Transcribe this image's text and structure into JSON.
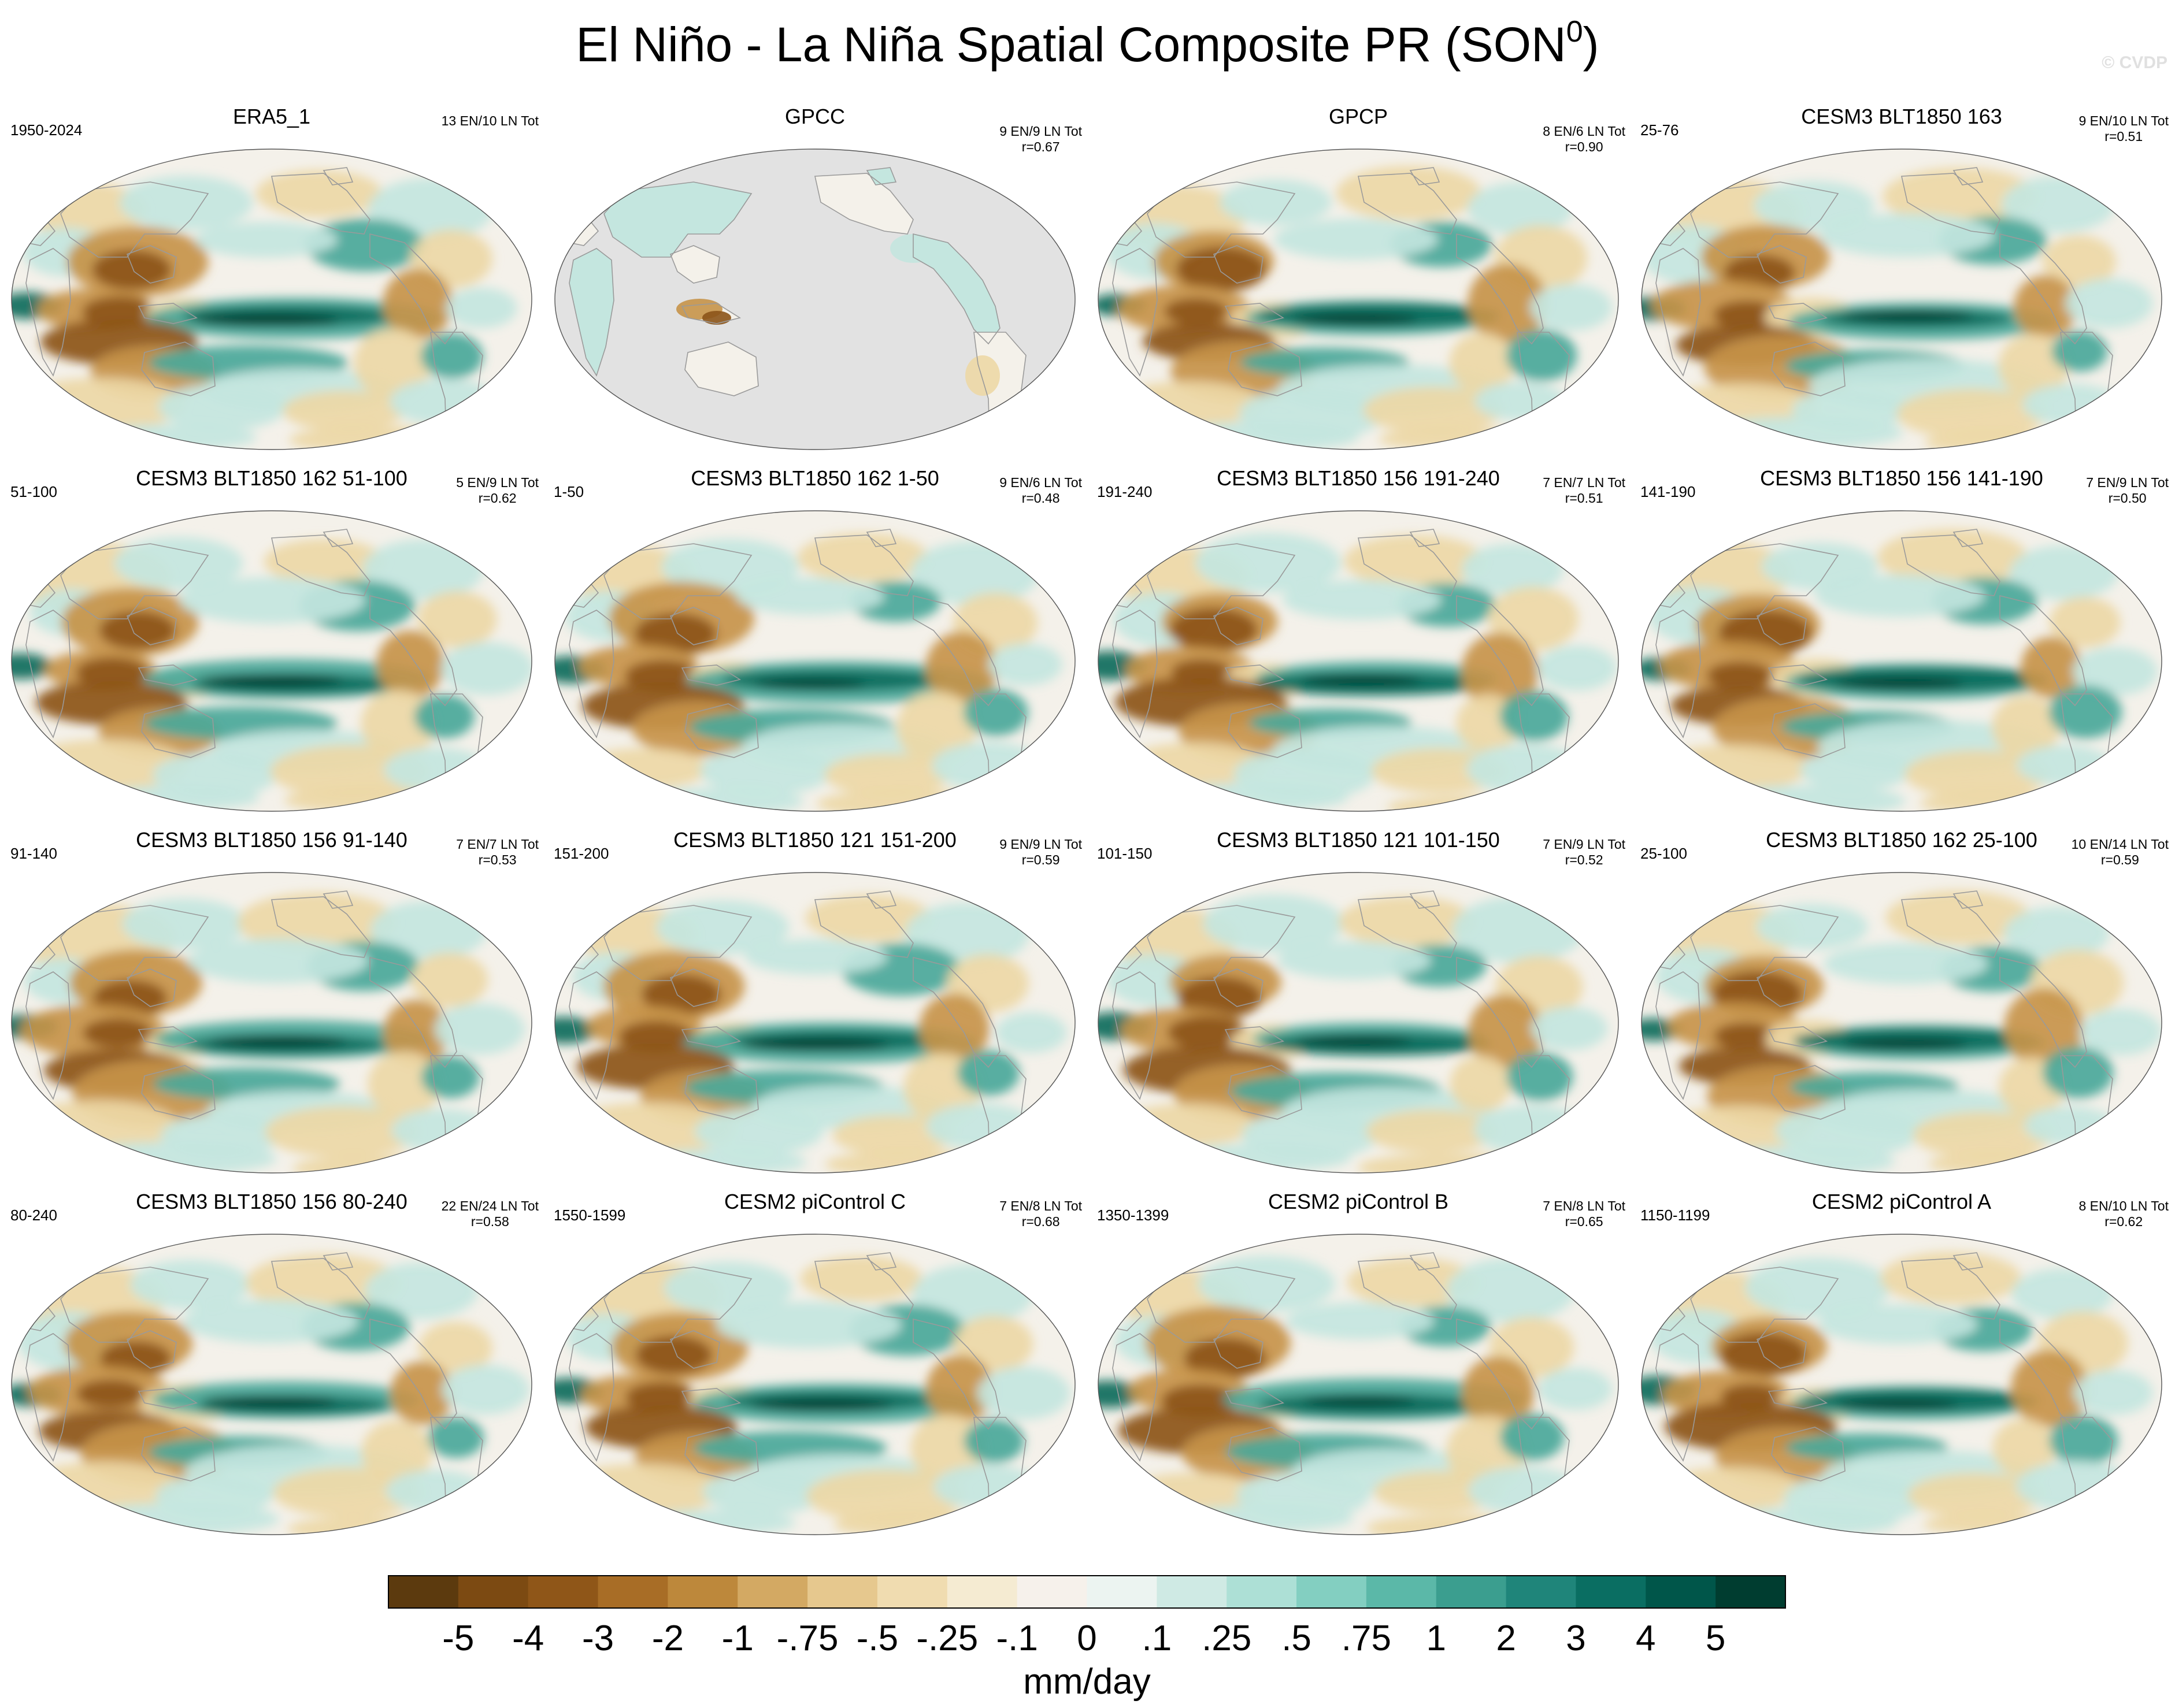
{
  "title_main": "El Niño - La Niña Spatial Composite PR (SON",
  "title_sup": "0",
  "title_close": ")",
  "copyright": "© CVDP",
  "colors": {
    "ocean_base": "#f4f1ea",
    "missing_gray": "#e2e2e2",
    "outline": "#9a9a9a",
    "dry_strong": "#8c5418",
    "dry_mid": "#c79449",
    "dry_light": "#edd8a6",
    "wet_light": "#c4e6df",
    "wet_mid": "#4aa89a",
    "wet_strong": "#0a6b5c",
    "wet_darkest": "#003d2e"
  },
  "panels": [
    {
      "title": "ERA5_1",
      "years": "1950-2024",
      "counts": "13 EN/10 LN Tot",
      "corr": "",
      "missing_ocean": false
    },
    {
      "title": "GPCC",
      "years": "",
      "counts": "9 EN/9 LN Tot",
      "corr": "r=0.67",
      "missing_ocean": true
    },
    {
      "title": "GPCP",
      "years": "",
      "counts": "8 EN/6 LN Tot",
      "corr": "r=0.90",
      "missing_ocean": false
    },
    {
      "title": "CESM3 BLT1850 163",
      "years": "25-76",
      "counts": "9 EN/10 LN Tot",
      "corr": "r=0.51",
      "missing_ocean": false
    },
    {
      "title": "CESM3 BLT1850 162 51-100",
      "years": "51-100",
      "counts": "5 EN/9 LN Tot",
      "corr": "r=0.62",
      "missing_ocean": false
    },
    {
      "title": "CESM3 BLT1850 162 1-50",
      "years": "1-50",
      "counts": "9 EN/6 LN Tot",
      "corr": "r=0.48",
      "missing_ocean": false
    },
    {
      "title": "CESM3 BLT1850 156 191-240",
      "years": "191-240",
      "counts": "7 EN/7 LN Tot",
      "corr": "r=0.51",
      "missing_ocean": false
    },
    {
      "title": "CESM3 BLT1850 156 141-190",
      "years": "141-190",
      "counts": "7 EN/9 LN Tot",
      "corr": "r=0.50",
      "missing_ocean": false
    },
    {
      "title": "CESM3 BLT1850 156 91-140",
      "years": "91-140",
      "counts": "7 EN/7 LN Tot",
      "corr": "r=0.53",
      "missing_ocean": false
    },
    {
      "title": "CESM3 BLT1850 121 151-200",
      "years": "151-200",
      "counts": "9 EN/9 LN Tot",
      "corr": "r=0.59",
      "missing_ocean": false
    },
    {
      "title": "CESM3 BLT1850 121 101-150",
      "years": "101-150",
      "counts": "7 EN/9 LN Tot",
      "corr": "r=0.52",
      "missing_ocean": false
    },
    {
      "title": "CESM3 BLT1850 162 25-100",
      "years": "25-100",
      "counts": "10 EN/14 LN Tot",
      "corr": "r=0.59",
      "missing_ocean": false
    },
    {
      "title": "CESM3 BLT1850 156 80-240",
      "years": "80-240",
      "counts": "22 EN/24 LN Tot",
      "corr": "r=0.58",
      "missing_ocean": false
    },
    {
      "title": "CESM2 piControl C",
      "years": "1550-1599",
      "counts": "7 EN/8 LN Tot",
      "corr": "r=0.68",
      "missing_ocean": false
    },
    {
      "title": "CESM2 piControl B",
      "years": "1350-1399",
      "counts": "7 EN/8 LN Tot",
      "corr": "r=0.65",
      "missing_ocean": false
    },
    {
      "title": "CESM2 piControl A",
      "years": "1150-1199",
      "counts": "8 EN/10 LN Tot",
      "corr": "r=0.62",
      "missing_ocean": false
    }
  ],
  "colorbar": {
    "colors": [
      "#5c3a0e",
      "#7c4a12",
      "#8f5618",
      "#a86d26",
      "#bd883b",
      "#d3a963",
      "#e6c88e",
      "#f0dcb0",
      "#f5ebd2",
      "#f6f1eb",
      "#ecf4f1",
      "#cfeae4",
      "#ade0d6",
      "#83cfc1",
      "#5bb8a8",
      "#3b9e8f",
      "#1f857a",
      "#0a6e62",
      "#00564a",
      "#003d30"
    ],
    "labels": [
      "-5",
      "-4",
      "-3",
      "-2",
      "-1",
      "-.75",
      "-.5",
      "-.25",
      "-.1",
      "0",
      ".1",
      ".25",
      ".5",
      ".75",
      "1",
      "2",
      "3",
      "4",
      "5"
    ],
    "units": "mm/day"
  }
}
